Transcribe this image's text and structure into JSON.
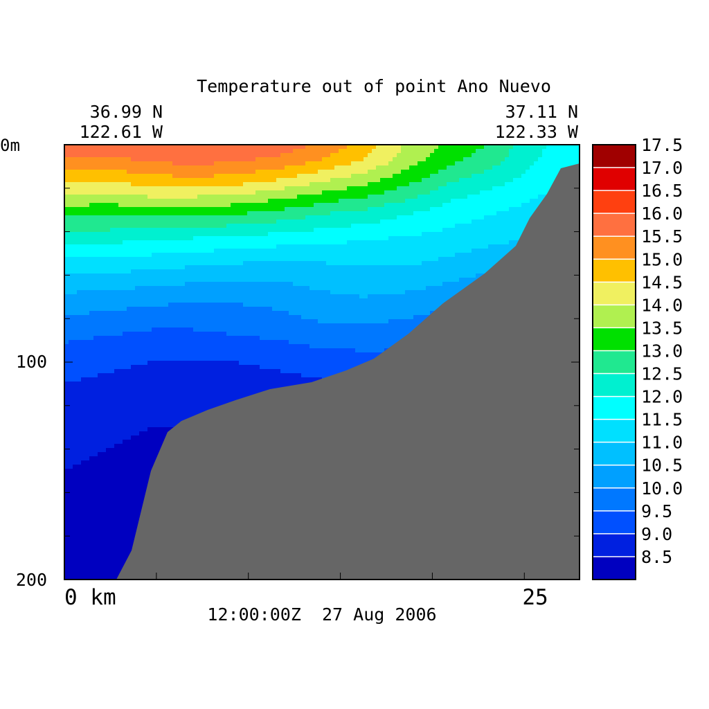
{
  "chart_data": {
    "type": "heatmap",
    "title": "Temperature out of point Ano Nuevo",
    "start_lat": "36.99 N",
    "start_lon": "122.61 W",
    "end_lat": "37.11 N",
    "end_lon": "122.33 W",
    "y_label_top": "0m",
    "y_ticks": [
      "100",
      "200"
    ],
    "x_label_start": "0 km",
    "x_label_end": "25",
    "timestamp": "12:00:00Z  27 Aug 2006",
    "x_range_km": [
      0,
      28
    ],
    "y_range_m": [
      0,
      200
    ],
    "colorbar": {
      "levels": [
        8.5,
        9.0,
        9.5,
        10.0,
        10.5,
        11.0,
        11.5,
        12.0,
        12.5,
        13.0,
        13.5,
        14.0,
        14.5,
        15.0,
        15.5,
        16.0,
        16.5,
        17.0,
        17.5
      ],
      "labels": [
        "8.5",
        "9.0",
        "9.5",
        "10.0",
        "10.5",
        "11.0",
        "11.5",
        "12.0",
        "12.5",
        "13.0",
        "13.5",
        "14.0",
        "14.5",
        "15.0",
        "15.5",
        "16.0",
        "16.5",
        "17.0",
        "17.5"
      ],
      "colors": [
        "#0000c0",
        "#0020e0",
        "#0050ff",
        "#0078ff",
        "#00a0ff",
        "#00c0ff",
        "#00e0ff",
        "#00ffff",
        "#00f0d0",
        "#20e890",
        "#00e000",
        "#b0f050",
        "#f0f060",
        "#ffc000",
        "#ff9020",
        "#ff7040",
        "#ff4010",
        "#e00000",
        "#a00000"
      ]
    },
    "bathymetry_color": "#666666"
  }
}
